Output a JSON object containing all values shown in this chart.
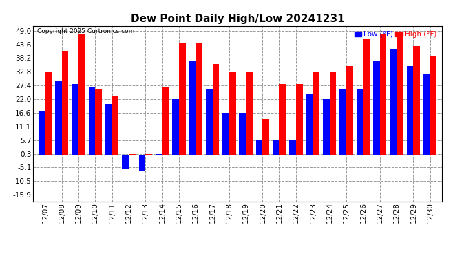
{
  "title": "Dew Point Daily High/Low 20241231",
  "copyright": "Copyright 2025 Curtronics.com",
  "legend_low_label": "Low (°F)",
  "legend_high_label": "High (°F)",
  "low_color": "blue",
  "high_color": "red",
  "dates": [
    "12/07",
    "12/08",
    "12/09",
    "12/10",
    "12/11",
    "12/12",
    "12/13",
    "12/14",
    "12/15",
    "12/16",
    "12/17",
    "12/18",
    "12/19",
    "12/20",
    "12/21",
    "12/22",
    "12/23",
    "12/24",
    "12/25",
    "12/26",
    "12/27",
    "12/28",
    "12/29",
    "12/30"
  ],
  "high": [
    33.0,
    41.0,
    48.0,
    26.0,
    23.0,
    0.3,
    0.3,
    27.0,
    44.0,
    44.0,
    36.0,
    33.0,
    33.0,
    14.0,
    28.0,
    28.0,
    33.0,
    33.0,
    35.0,
    46.0,
    48.0,
    48.0,
    43.0,
    39.0
  ],
  "low": [
    17.0,
    29.0,
    28.0,
    27.0,
    20.0,
    -5.5,
    -6.5,
    0.3,
    22.0,
    37.0,
    26.0,
    16.6,
    16.6,
    6.0,
    6.0,
    6.0,
    24.0,
    22.0,
    26.0,
    26.0,
    37.0,
    42.0,
    35.0,
    32.0
  ],
  "yticks": [
    49.0,
    43.6,
    38.2,
    32.8,
    27.4,
    22.0,
    16.6,
    11.1,
    5.7,
    0.3,
    -5.1,
    -10.5,
    -15.9
  ],
  "ylim": [
    -18.5,
    51.0
  ],
  "background_color": "#ffffff",
  "grid_color": "#999999",
  "bar_width": 0.4
}
